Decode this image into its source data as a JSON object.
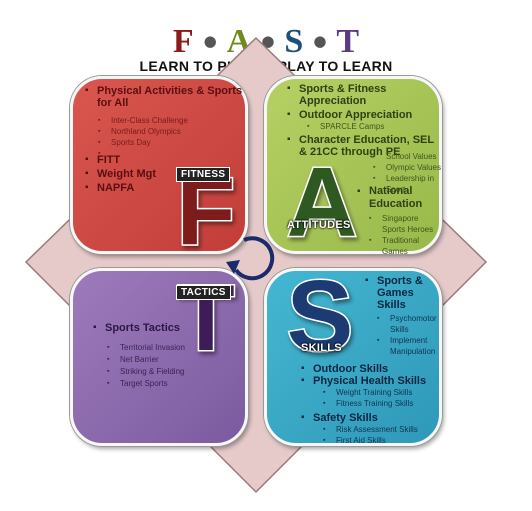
{
  "title": {
    "letters": [
      "F",
      "A",
      "S",
      "T"
    ],
    "letter_colors": [
      "#8b1a1a",
      "#6f8a1e",
      "#1e4f7a",
      "#5a3a80"
    ]
  },
  "subtitle": {
    "left": "LEARN TO PLAY",
    "right": "PLAY TO LEARN"
  },
  "colors": {
    "fitness": "#c9433f",
    "attitudes": "#a8c457",
    "tactics": "#8a69ae",
    "skills": "#3aabc8",
    "diamond": "#e6caca"
  },
  "fitness": {
    "label": "FITNESS",
    "letter": "F",
    "group1": "Physical Activities & Sports for All",
    "items1": [
      "Inter-Class Challenge",
      "Northland Olympics",
      "Sports Day",
      ""
    ],
    "main": [
      "FITT",
      "Weight Mgt",
      "NAPFA"
    ]
  },
  "attitudes": {
    "label": "ATTITUDES",
    "letter": "A",
    "group1": "Sports & Fitness Appreciation",
    "group2": "Outdoor Appreciation",
    "items2": [
      "SPARCLE Camps"
    ],
    "group3": "Character Education, SEL & 21CC through PE",
    "items3": [
      "School Values",
      "Olympic Values",
      "Leadership in Sport"
    ],
    "group4": "National Education",
    "items4": [
      "Singapore Sports Heroes",
      "Traditional Games"
    ]
  },
  "tactics": {
    "label": "TACTICS",
    "letter": "T",
    "group1": "Sports Tactics",
    "items1": [
      "Territorial Invasion",
      "Net Barrier",
      "Striking & Fielding",
      "Target Sports"
    ]
  },
  "skills": {
    "label": "SKILLS",
    "letter": "S",
    "group1": "Sports & Games Skills",
    "items1": [
      "Psychomotor Skills",
      "Implement Manipulation"
    ],
    "group2": "Outdoor Skills",
    "group3": "Physical Health Skills",
    "items3": [
      "Weight Training Skills",
      "Fitness Training Skills"
    ],
    "group4": "Safety Skills",
    "items4": [
      "Risk Assessment Skills",
      "First Aid Skills"
    ]
  }
}
